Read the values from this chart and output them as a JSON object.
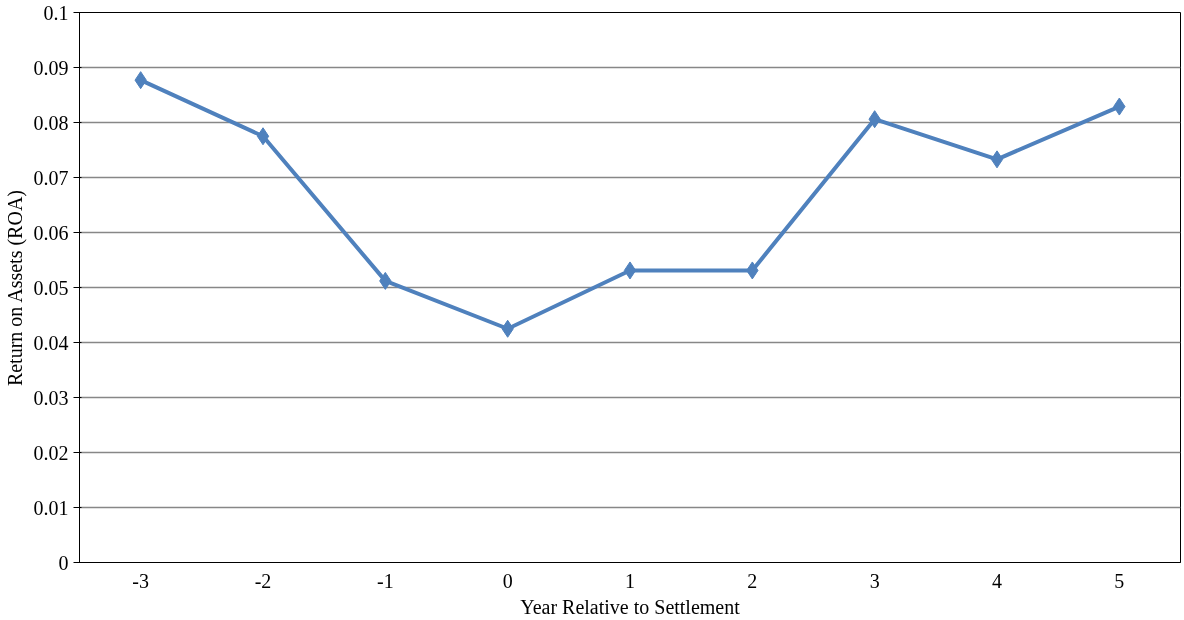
{
  "chart_data": {
    "type": "line",
    "xlabel": "Year Relative to Settlement",
    "ylabel": "Return on Assets (ROA)",
    "categories": [
      "-3",
      "-2",
      "-1",
      "0",
      "1",
      "2",
      "3",
      "4",
      "5"
    ],
    "series": [
      {
        "color": "#4f81bd",
        "values": [
          0.0877,
          0.0775,
          0.0512,
          0.0425,
          0.0531,
          0.0531,
          0.0806,
          0.0733,
          0.0829
        ]
      }
    ],
    "ylim": [
      0,
      0.1
    ],
    "yticks": [
      0,
      0.01,
      0.02,
      0.03,
      0.04,
      0.05,
      0.06,
      0.07,
      0.08,
      0.09,
      0.1
    ],
    "grid": "y",
    "marker": "diamond",
    "line_style": "solid"
  }
}
